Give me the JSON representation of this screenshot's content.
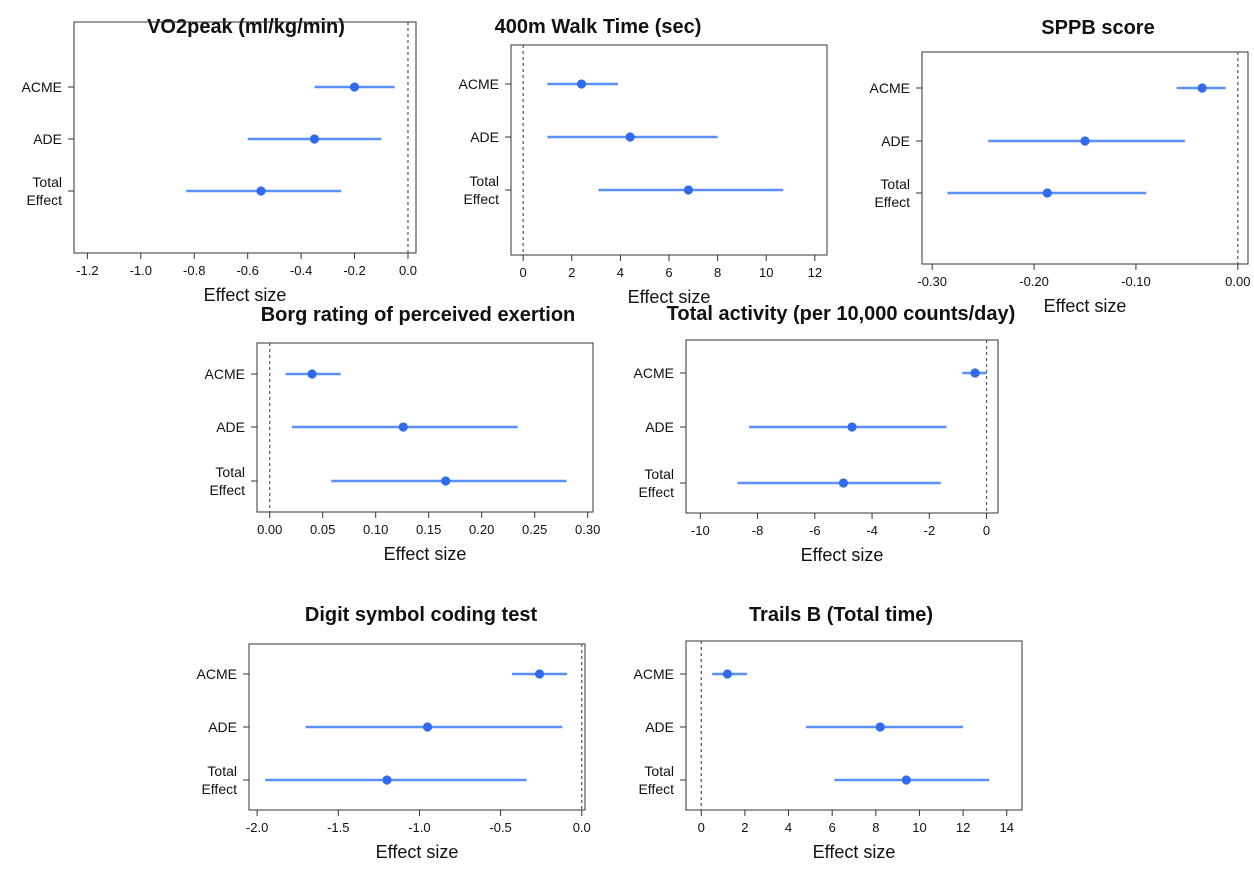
{
  "colors": {
    "ci_line": "#5b8ff9",
    "point": "#2f6bea",
    "frame": "#333333"
  },
  "chart_data": [
    {
      "type": "forest",
      "title": "VO2peak (ml/kg/min)",
      "xlabel": "Effect size",
      "xlim": [
        -1.25,
        0.03
      ],
      "ticks": [
        -1.2,
        -1.0,
        -0.8,
        -0.6,
        -0.4,
        -0.2,
        0.0
      ],
      "tick_labels": [
        "-1.2",
        "-1.0",
        "-0.8",
        "-0.6",
        "-0.4",
        "-0.2",
        "0.0"
      ],
      "reference_line": 0,
      "rows": [
        {
          "label": [
            "ACME"
          ],
          "estimate": -0.2,
          "lower": -0.35,
          "upper": -0.05
        },
        {
          "label": [
            "ADE"
          ],
          "estimate": -0.35,
          "lower": -0.6,
          "upper": -0.1
        },
        {
          "label": [
            "Total",
            "Effect"
          ],
          "estimate": -0.55,
          "lower": -0.83,
          "upper": -0.25
        }
      ]
    },
    {
      "type": "forest",
      "title": "400m Walk Time (sec)",
      "xlabel": "Effect size",
      "xlim": [
        -0.5,
        12.5
      ],
      "ticks": [
        0,
        2,
        4,
        6,
        8,
        10,
        12
      ],
      "tick_labels": [
        "0",
        "2",
        "4",
        "6",
        "8",
        "10",
        "12"
      ],
      "reference_line": 0,
      "rows": [
        {
          "label": [
            "ACME"
          ],
          "estimate": 2.4,
          "lower": 1.0,
          "upper": 3.9
        },
        {
          "label": [
            "ADE"
          ],
          "estimate": 4.4,
          "lower": 1.0,
          "upper": 8.0
        },
        {
          "label": [
            "Total",
            "Effect"
          ],
          "estimate": 6.8,
          "lower": 3.1,
          "upper": 10.7
        }
      ]
    },
    {
      "type": "forest",
      "title": "SPPB score",
      "xlabel": "Effect size",
      "xlim": [
        -0.31,
        0.01
      ],
      "ticks": [
        -0.3,
        -0.2,
        -0.1,
        0.0
      ],
      "tick_labels": [
        "-0.30",
        "-0.20",
        "-0.10",
        "0.00"
      ],
      "reference_line": 0,
      "rows": [
        {
          "label": [
            "ACME"
          ],
          "estimate": -0.035,
          "lower": -0.06,
          "upper": -0.012
        },
        {
          "label": [
            "ADE"
          ],
          "estimate": -0.15,
          "lower": -0.245,
          "upper": -0.052
        },
        {
          "label": [
            "Total",
            "Effect"
          ],
          "estimate": -0.187,
          "lower": -0.285,
          "upper": -0.09
        }
      ]
    },
    {
      "type": "forest",
      "title": "Borg rating of perceived exertion",
      "xlabel": "Effect size",
      "xlim": [
        -0.012,
        0.305
      ],
      "ticks": [
        0.0,
        0.05,
        0.1,
        0.15,
        0.2,
        0.25,
        0.3
      ],
      "tick_labels": [
        "0.00",
        "0.05",
        "0.10",
        "0.15",
        "0.20",
        "0.25",
        "0.30"
      ],
      "reference_line": 0,
      "rows": [
        {
          "label": [
            "ACME"
          ],
          "estimate": 0.04,
          "lower": 0.015,
          "upper": 0.067
        },
        {
          "label": [
            "ADE"
          ],
          "estimate": 0.126,
          "lower": 0.021,
          "upper": 0.234
        },
        {
          "label": [
            "Total",
            "Effect"
          ],
          "estimate": 0.166,
          "lower": 0.058,
          "upper": 0.28
        }
      ]
    },
    {
      "type": "forest",
      "title": "Total activity (per 10,000 counts/day)",
      "xlabel": "Effect size",
      "xlim": [
        -10.5,
        0.4
      ],
      "ticks": [
        -10,
        -8,
        -6,
        -4,
        -2,
        0
      ],
      "tick_labels": [
        "-10",
        "-8",
        "-6",
        "-4",
        "-2",
        "0"
      ],
      "reference_line": 0,
      "rows": [
        {
          "label": [
            "ACME"
          ],
          "estimate": -0.4,
          "lower": -0.85,
          "upper": 0.0
        },
        {
          "label": [
            "ADE"
          ],
          "estimate": -4.7,
          "lower": -8.3,
          "upper": -1.4
        },
        {
          "label": [
            "Total",
            "Effect"
          ],
          "estimate": -5.0,
          "lower": -8.7,
          "upper": -1.6
        }
      ]
    },
    {
      "type": "forest",
      "title": "Digit symbol coding test",
      "xlabel": "Effect size",
      "xlim": [
        -2.05,
        0.02
      ],
      "ticks": [
        -2.0,
        -1.5,
        -1.0,
        -0.5,
        0.0
      ],
      "tick_labels": [
        "-2.0",
        "-1.5",
        "-1.0",
        "-0.5",
        "0.0"
      ],
      "reference_line": 0,
      "rows": [
        {
          "label": [
            "ACME"
          ],
          "estimate": -0.26,
          "lower": -0.43,
          "upper": -0.09
        },
        {
          "label": [
            "ADE"
          ],
          "estimate": -0.95,
          "lower": -1.7,
          "upper": -0.12
        },
        {
          "label": [
            "Total",
            "Effect"
          ],
          "estimate": -1.2,
          "lower": -1.95,
          "upper": -0.34
        }
      ]
    },
    {
      "type": "forest",
      "title": "Trails B (Total time)",
      "xlabel": "Effect size",
      "xlim": [
        -0.7,
        14.7
      ],
      "ticks": [
        0,
        2,
        4,
        6,
        8,
        10,
        12,
        14
      ],
      "tick_labels": [
        "0",
        "2",
        "4",
        "6",
        "8",
        "10",
        "12",
        "14"
      ],
      "reference_line": 0,
      "rows": [
        {
          "label": [
            "ACME"
          ],
          "estimate": 1.2,
          "lower": 0.5,
          "upper": 2.1
        },
        {
          "label": [
            "ADE"
          ],
          "estimate": 8.2,
          "lower": 4.8,
          "upper": 12.0
        },
        {
          "label": [
            "Total",
            "Effect"
          ],
          "estimate": 9.4,
          "lower": 6.1,
          "upper": 13.2
        }
      ]
    }
  ]
}
